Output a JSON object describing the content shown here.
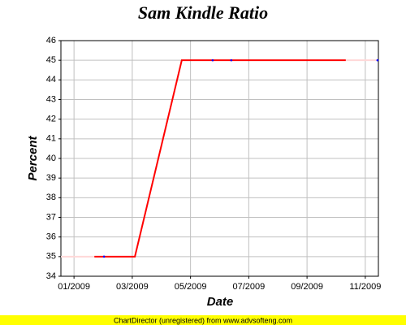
{
  "chart_data": {
    "type": "line",
    "title": "Sam Kindle Ratio",
    "xlabel": "Date",
    "ylabel": "Percent",
    "footer": "ChartDirector (unregistered) from www.advsofteng.com",
    "series": [
      {
        "color": "#ffd8d8",
        "x": [
          0.55,
          1.7,
          1.7,
          10.33,
          11.45
        ],
        "values": [
          35,
          35,
          null,
          45,
          45
        ]
      },
      {
        "color": "#ff0000",
        "x": [
          1.7,
          3.09,
          4.7,
          10.33
        ],
        "values": [
          35,
          35,
          45,
          45
        ]
      },
      {
        "color": "#0000ff",
        "marker_only": true,
        "x": [
          2.03,
          5.76,
          6.4,
          11.42
        ],
        "values": [
          35,
          45,
          45,
          45
        ]
      }
    ],
    "xlim": [
      0.55,
      11.45
    ],
    "xticks": [
      {
        "value": 1,
        "label": "01/2009"
      },
      {
        "value": 3,
        "label": "03/2009"
      },
      {
        "value": 5,
        "label": "05/2009"
      },
      {
        "value": 7,
        "label": "07/2009"
      },
      {
        "value": 9,
        "label": "09/2009"
      },
      {
        "value": 11,
        "label": "11/2009"
      }
    ],
    "ylim": [
      34,
      46
    ],
    "yticks": [
      34,
      35,
      36,
      37,
      38,
      39,
      40,
      41,
      42,
      43,
      44,
      45,
      46
    ],
    "grid": true
  }
}
